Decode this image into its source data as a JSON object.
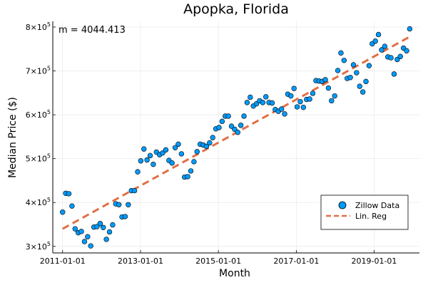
{
  "chart_data": {
    "type": "scatter",
    "title": "Apopka, Florida",
    "xlabel": "Month",
    "ylabel": "Median Price ($)",
    "annotation": "m = 4044.413",
    "colors": {
      "scatter": "#009AF9",
      "line": "#E26F46"
    },
    "grid": true,
    "legend_position": "bottom-right",
    "x_start": "2011-01-01",
    "x_end": "2019-12-01",
    "xlim": [
      "2010-10-01",
      "2020-03-01"
    ],
    "x_ticks": [
      "2011-01-01",
      "2013-01-01",
      "2015-01-01",
      "2017-01-01",
      "2019-01-01"
    ],
    "y_tick_values": [
      300000,
      400000,
      500000,
      600000,
      700000,
      800000
    ],
    "y_tick_labels": [
      {
        "mant": "3×10",
        "exp": "5"
      },
      {
        "mant": "4×10",
        "exp": "5"
      },
      {
        "mant": "5×10",
        "exp": "5"
      },
      {
        "mant": "6×10",
        "exp": "5"
      },
      {
        "mant": "7×10",
        "exp": "5"
      },
      {
        "mant": "8×10",
        "exp": "5"
      }
    ],
    "ylim": [
      285000,
      813000
    ],
    "series": [
      {
        "name": "Zillow Data",
        "kind": "scatter",
        "values": [
          378000,
          421000,
          420000,
          392000,
          340000,
          331000,
          334000,
          311000,
          322000,
          301000,
          344000,
          345000,
          352000,
          343000,
          316000,
          333000,
          349000,
          397000,
          395000,
          367000,
          368000,
          395000,
          427000,
          427000,
          470000,
          495000,
          522000,
          497000,
          507000,
          487000,
          515000,
          509000,
          513000,
          520000,
          496000,
          490000,
          525000,
          533000,
          511000,
          458000,
          459000,
          472000,
          493000,
          516000,
          533000,
          531000,
          528000,
          536000,
          548000,
          568000,
          571000,
          585000,
          597000,
          597000,
          574000,
          567000,
          560000,
          576000,
          597000,
          628000,
          640000,
          620000,
          625000,
          632000,
          628000,
          641000,
          628000,
          627000,
          612000,
          608000,
          613000,
          602000,
          647000,
          643000,
          660000,
          618000,
          630000,
          617000,
          635000,
          636000,
          649000,
          678000,
          677000,
          676000,
          680000,
          661000,
          632000,
          643000,
          701000,
          741000,
          724000,
          683000,
          685000,
          714000,
          696000,
          665000,
          652000,
          676000,
          712000,
          762000,
          768000,
          783000,
          748000,
          756000,
          732000,
          730000,
          693000,
          726000,
          733000,
          752000,
          746000,
          796000
        ]
      },
      {
        "name": "Lin. Reg",
        "kind": "line",
        "values": [
          340000,
          778000
        ]
      }
    ]
  }
}
